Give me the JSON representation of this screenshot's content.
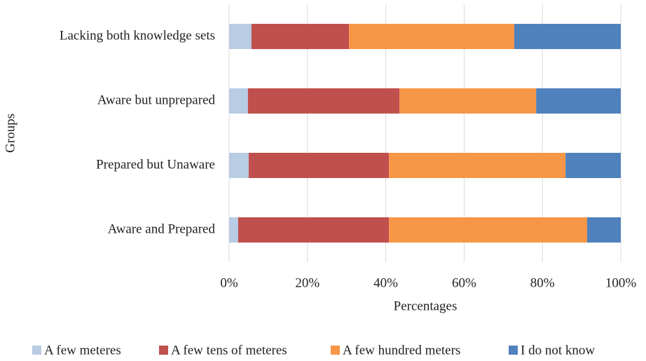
{
  "chart_data": {
    "type": "stacked_bar_horizontal",
    "x_label": "Percentages",
    "y_label": "Groups",
    "categories": [
      "Lacking both knowledge sets",
      "Aware but unprepared",
      "Prepared but Unaware",
      "Aware and Prepared"
    ],
    "series": [
      {
        "name": "A few meteres",
        "color": "#b8cce4",
        "values": [
          5.7,
          4.8,
          5.0,
          2.3
        ]
      },
      {
        "name": "A few tens of meteres",
        "color": "#c0504d",
        "values": [
          24.9,
          38.7,
          35.8,
          38.5
        ]
      },
      {
        "name": "A few hundred meters",
        "color": "#f79646",
        "values": [
          42.2,
          34.9,
          45.1,
          50.6
        ]
      },
      {
        "name": "I do not know",
        "color": "#4f81bd",
        "values": [
          27.2,
          21.6,
          14.1,
          8.6
        ]
      }
    ],
    "xlim": [
      0,
      100
    ],
    "xticks": [
      {
        "value": 0,
        "label": "0%"
      },
      {
        "value": 20,
        "label": "20%"
      },
      {
        "value": 40,
        "label": "40%"
      },
      {
        "value": 60,
        "label": "60%"
      },
      {
        "value": 80,
        "label": "80%"
      },
      {
        "value": 100,
        "label": "100%"
      }
    ],
    "grid": true,
    "legend": "bottom"
  }
}
